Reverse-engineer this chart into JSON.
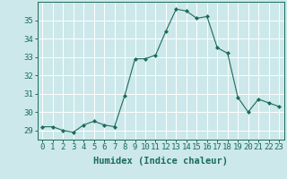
{
  "x": [
    0,
    1,
    2,
    3,
    4,
    5,
    6,
    7,
    8,
    9,
    10,
    11,
    12,
    13,
    14,
    15,
    16,
    17,
    18,
    19,
    20,
    21,
    22,
    23
  ],
  "y": [
    29.2,
    29.2,
    29.0,
    28.9,
    29.3,
    29.5,
    29.3,
    29.2,
    30.9,
    32.9,
    32.9,
    33.1,
    34.4,
    35.6,
    35.5,
    35.1,
    35.2,
    33.5,
    33.2,
    30.8,
    30.0,
    30.7,
    30.5,
    30.3
  ],
  "line_color": "#1a6b5a",
  "marker": "D",
  "marker_size": 2.0,
  "bg_color": "#cce8ea",
  "grid_color": "#ffffff",
  "xlabel": "Humidex (Indice chaleur)",
  "ylabel_ticks": [
    29,
    30,
    31,
    32,
    33,
    34,
    35
  ],
  "ylim": [
    28.5,
    36.0
  ],
  "xlim": [
    -0.5,
    23.5
  ],
  "label_fontsize": 7.5,
  "tick_fontsize": 6.5
}
